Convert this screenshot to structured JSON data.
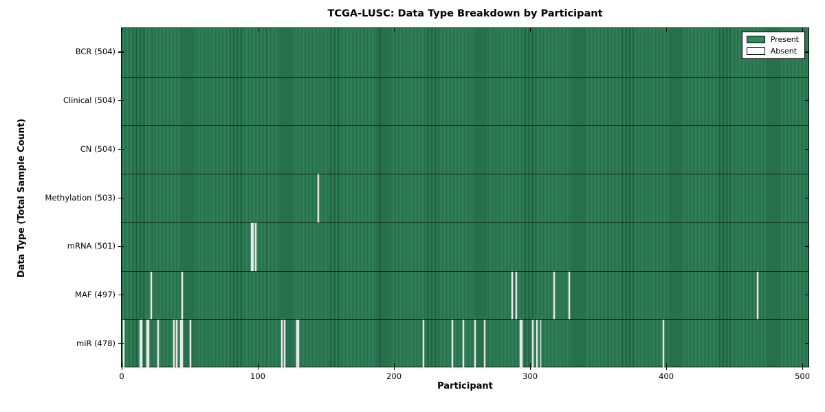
{
  "chart_data": {
    "type": "heatmap",
    "title": "TCGA-LUSC: Data Type Breakdown by Participant",
    "xlabel": "Participant",
    "ylabel": "Data Type (Total Sample Count)",
    "x_ticks": [
      0,
      100,
      200,
      300,
      400,
      500
    ],
    "x_range": [
      0,
      504
    ],
    "n_participants": 504,
    "legend": {
      "present_label": "Present",
      "absent_label": "Absent",
      "position": "upper right"
    },
    "colors": {
      "present": "#2e8b57",
      "present_edge": "#1e5e3e",
      "absent": "#e9e9e9",
      "frame": "#000000"
    },
    "rows": [
      {
        "label": "BCR (504)",
        "data_type": "BCR",
        "total_samples": 504,
        "absent_participants": []
      },
      {
        "label": "Clinical (504)",
        "data_type": "Clinical",
        "total_samples": 504,
        "absent_participants": []
      },
      {
        "label": "CN (504)",
        "data_type": "CN",
        "total_samples": 504,
        "absent_participants": []
      },
      {
        "label": "Methylation (503)",
        "data_type": "Methylation",
        "total_samples": 503,
        "absent_participants": [
          144
        ]
      },
      {
        "label": "mRNA (501)",
        "data_type": "mRNA",
        "total_samples": 501,
        "absent_participants": [
          95,
          96,
          98
        ]
      },
      {
        "label": "MAF (497)",
        "data_type": "MAF",
        "total_samples": 497,
        "absent_participants": [
          21,
          44,
          286,
          289,
          317,
          328,
          466
        ]
      },
      {
        "label": "miR (478)",
        "data_type": "miR",
        "total_samples": 478,
        "absent_participants": [
          1,
          13,
          14,
          18,
          19,
          26,
          38,
          40,
          43,
          44,
          50,
          117,
          119,
          128,
          129,
          221,
          242,
          250,
          259,
          266,
          292,
          293,
          301,
          304,
          307,
          397
        ]
      }
    ]
  }
}
